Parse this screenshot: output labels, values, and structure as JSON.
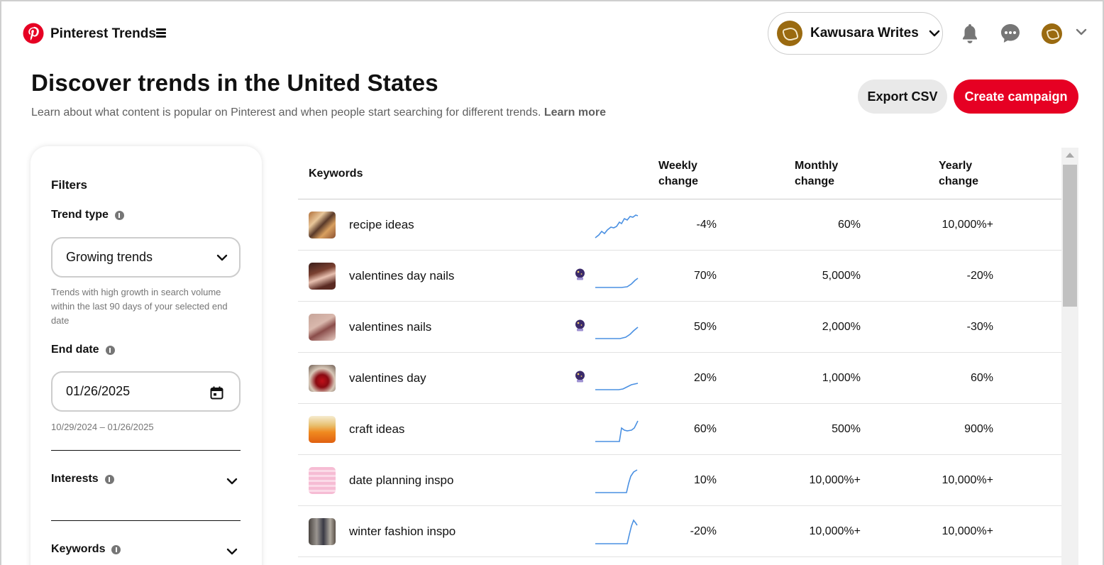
{
  "header": {
    "app_title": "Pinterest Trends",
    "account_name": "Kawusara Writes"
  },
  "page": {
    "title": "Discover trends in the United States",
    "subtitle": "Learn about what content is popular on Pinterest and when people start searching for different trends.",
    "learn_more": "Learn more",
    "export_label": "Export CSV",
    "create_label": "Create campaign"
  },
  "filters": {
    "title": "Filters",
    "trend_type_label": "Trend type",
    "trend_type_value": "Growing trends",
    "trend_type_help": "Trends with high growth in search volume within the last 90 days of your selected end date",
    "end_date_label": "End date",
    "end_date_value": "01/26/2025",
    "end_date_range": "10/29/2024 – 01/26/2025",
    "interests_label": "Interests",
    "keywords_label": "Keywords"
  },
  "table": {
    "headers": {
      "keywords": "Keywords",
      "weekly_1": "Weekly",
      "weekly_2": "change",
      "monthly_1": "Monthly",
      "monthly_2": "change",
      "yearly_1": "Yearly",
      "yearly_2": "change"
    },
    "rows": [
      {
        "keyword": "recipe ideas",
        "weekly": "-4%",
        "monthly": "60%",
        "yearly": "10,000%+",
        "seasonal": false
      },
      {
        "keyword": "valentines day nails",
        "weekly": "70%",
        "monthly": "5,000%",
        "yearly": "-20%",
        "seasonal": true
      },
      {
        "keyword": "valentines nails",
        "weekly": "50%",
        "monthly": "2,000%",
        "yearly": "-30%",
        "seasonal": true
      },
      {
        "keyword": "valentines day",
        "weekly": "20%",
        "monthly": "1,000%",
        "yearly": "60%",
        "seasonal": true
      },
      {
        "keyword": "craft ideas",
        "weekly": "60%",
        "monthly": "500%",
        "yearly": "900%",
        "seasonal": false
      },
      {
        "keyword": "date planning inspo",
        "weekly": "10%",
        "monthly": "10,000%+",
        "yearly": "10,000%+",
        "seasonal": false
      },
      {
        "keyword": "winter fashion inspo",
        "weekly": "-20%",
        "monthly": "10,000%+",
        "yearly": "10,000%+",
        "seasonal": false
      }
    ]
  },
  "colors": {
    "brand_red": "#e60023",
    "sparkline": "#4a90e2"
  },
  "icons": {
    "logo": "pinterest-logo",
    "menu": "hamburger-icon",
    "bell": "bell-icon",
    "chat": "chat-icon",
    "calendar": "calendar-icon",
    "seasonal": "crystal-ball-icon"
  }
}
